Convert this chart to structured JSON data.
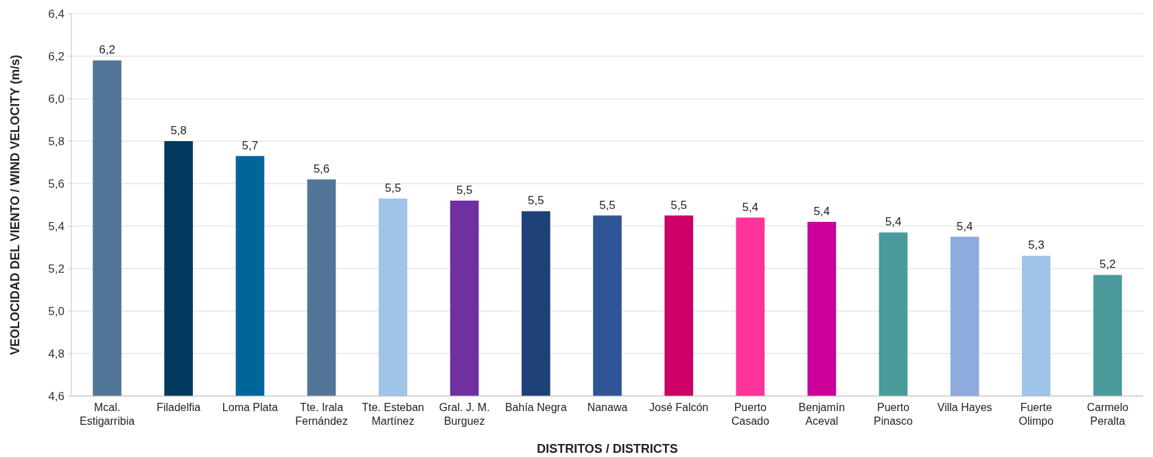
{
  "chart_data": {
    "type": "bar",
    "xlabel": "DISTRITOS / DISTRICTS",
    "ylabel": "VEOLOCIDAD DEL VIENTO / WIND VELOCITY (m/s)",
    "categories": [
      "Mcal. Estigarribia",
      "Filadelfia",
      "Loma Plata",
      "Tte. Irala Fernández",
      "Tte. Esteban Martínez",
      "Gral. J. M. Burguez",
      "Bahía Negra",
      "Nanawa",
      "José Falcón",
      "Puerto Casado",
      "Benjamín Aceval",
      "Puerto Pinasco",
      "Villa Hayes",
      "Fuerte Olimpo",
      "Carmelo Peralta"
    ],
    "values": [
      6.18,
      5.8,
      5.73,
      5.62,
      5.53,
      5.52,
      5.47,
      5.45,
      5.45,
      5.44,
      5.42,
      5.37,
      5.35,
      5.26,
      5.17
    ],
    "value_labels": [
      "6,2",
      "5,8",
      "5,7",
      "5,6",
      "5,5",
      "5,5",
      "5,5",
      "5,5",
      "5,5",
      "5,4",
      "5,4",
      "5,4",
      "5,4",
      "5,3",
      "5,2"
    ],
    "colors": [
      "#527698",
      "#03395e",
      "#006699",
      "#527698",
      "#9fc4e7",
      "#7030a0",
      "#1f3f77",
      "#2f5597",
      "#cc0066",
      "#ff3399",
      "#cc0099",
      "#4a9b9b",
      "#8faadc",
      "#9fc4e7",
      "#4a9b9b"
    ],
    "ylim": [
      4.6,
      6.4
    ],
    "yticks": [
      {
        "value": 4.6,
        "label": "4,6"
      },
      {
        "value": 4.8,
        "label": "4,8"
      },
      {
        "value": 5.0,
        "label": "5,0"
      },
      {
        "value": 5.2,
        "label": "5,2"
      },
      {
        "value": 5.4,
        "label": "5,4"
      },
      {
        "value": 5.6,
        "label": "5,6"
      },
      {
        "value": 5.8,
        "label": "5,8"
      },
      {
        "value": 6.0,
        "label": "6,0"
      },
      {
        "value": 6.2,
        "label": "6,2"
      },
      {
        "value": 6.4,
        "label": "6,4"
      }
    ],
    "grid": "y"
  }
}
